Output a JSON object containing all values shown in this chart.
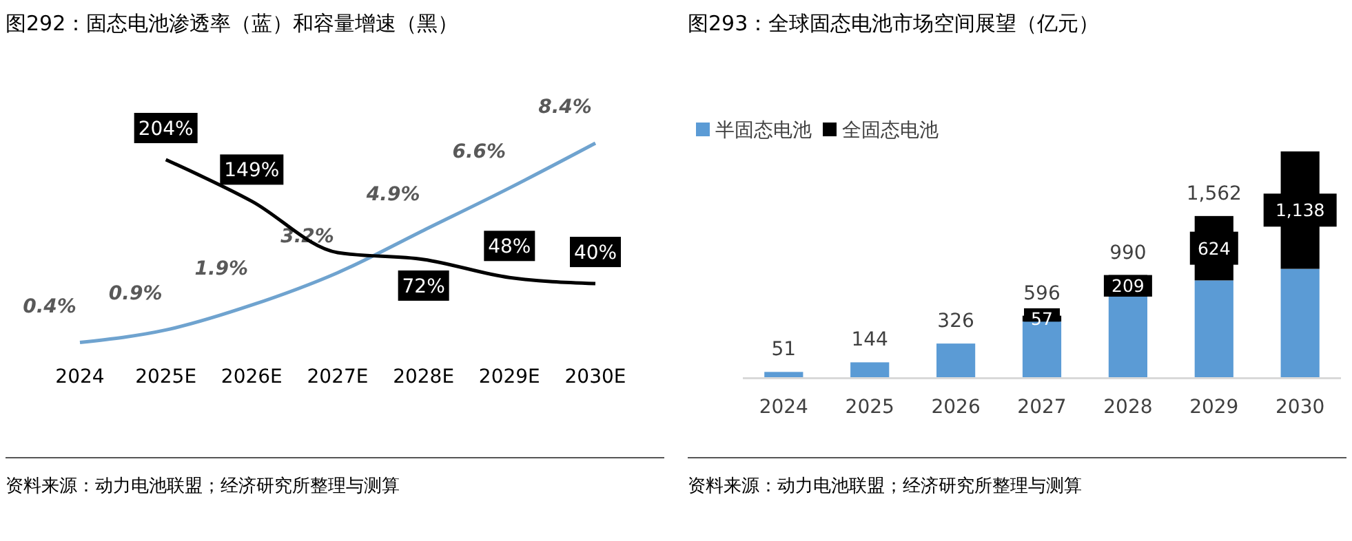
{
  "chart_data": [
    {
      "type": "line",
      "title": "图292：固态电池渗透率（蓝）和容量增速（黑）",
      "categories": [
        "2024",
        "2025E",
        "2026E",
        "2027E",
        "2028E",
        "2029E",
        "2030E"
      ],
      "series": [
        {
          "color": "#6fa3cf",
          "values": [
            0.4,
            0.9,
            1.9,
            3.2,
            4.9,
            6.6,
            8.4
          ],
          "value_labels": [
            "0.4%",
            "0.9%",
            "1.9%",
            "3.2%",
            "4.9%",
            "6.6%",
            "8.4%"
          ]
        },
        {
          "color": "#000000",
          "axis": "y2",
          "values": [
            null,
            204,
            149,
            81,
            72,
            48,
            40
          ],
          "value_labels": [
            null,
            "204%",
            "149%",
            null,
            "72%",
            "48%",
            "40%"
          ]
        }
      ],
      "annotations": [
        "资料来源：动力电池联盟；经济研究所整理与测算"
      ]
    },
    {
      "type": "bar",
      "stacked": true,
      "title": "图293：全球固态电池市场空间展望（亿元）",
      "categories": [
        "2024",
        "2025",
        "2026",
        "2027",
        "2028",
        "2029",
        "2030"
      ],
      "legend": "top left",
      "series": [
        {
          "name": "半固态电池",
          "color": "#5b9bd5",
          "values": [
            51,
            144,
            326,
            539,
            781,
            938,
            1050
          ]
        },
        {
          "name": "全固态电池",
          "color": "#000000",
          "values": [
            null,
            null,
            null,
            57,
            209,
            624,
            1138
          ],
          "value_labels": [
            null,
            null,
            null,
            "57",
            "209",
            "624",
            "1,138"
          ]
        }
      ],
      "totals": [
        "51",
        "144",
        "326",
        "596",
        "990",
        "1,562",
        null
      ],
      "annotations": [
        "资料来源：动力电池联盟；经济研究所整理与测算"
      ]
    }
  ]
}
